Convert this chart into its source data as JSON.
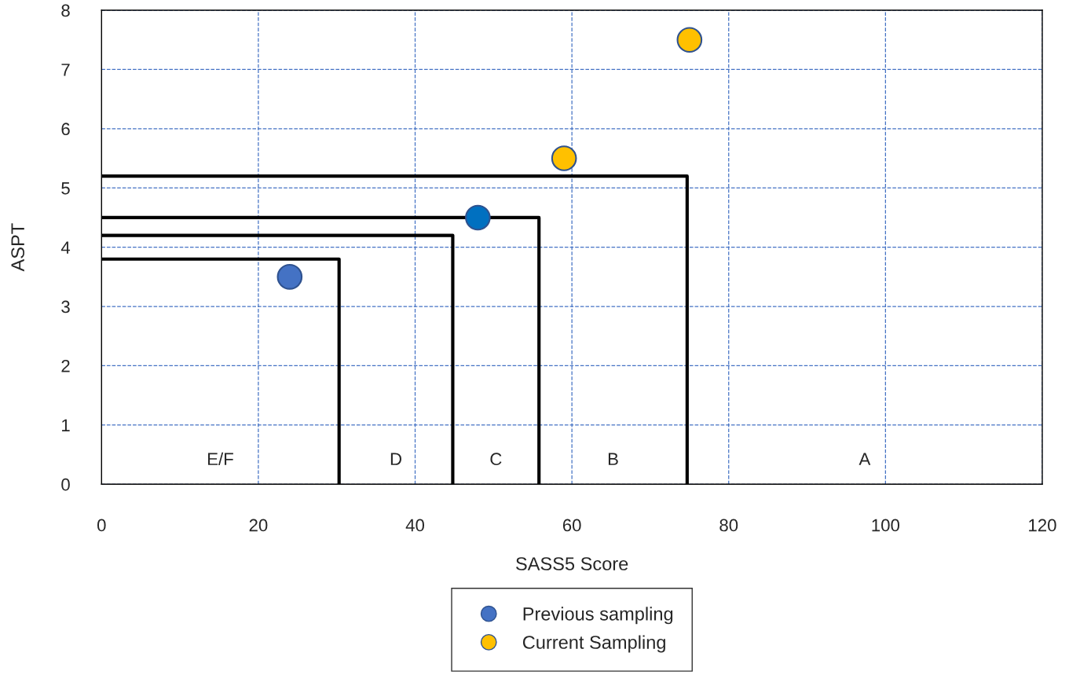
{
  "chart_data": {
    "type": "scatter",
    "xlabel": "SASS5 Score",
    "ylabel": "ASPT",
    "xlim": [
      0,
      120
    ],
    "xticks": [
      0,
      20,
      40,
      60,
      80,
      100,
      120
    ],
    "ylim": [
      0,
      8
    ],
    "yticks": [
      0,
      1,
      2,
      3,
      4,
      5,
      6,
      7,
      8
    ],
    "grid": true,
    "legend": "bottom",
    "marker": "circle",
    "series": [
      {
        "name": "Previous sampling",
        "color": "#4472c4",
        "colors": [
          "#4472c4",
          "#0070c0"
        ],
        "x": [
          24,
          48
        ],
        "values": [
          3.5,
          4.5
        ]
      },
      {
        "name": "Current Sampling",
        "color": "#ffc000",
        "x": [
          59,
          75
        ],
        "values": [
          5.5,
          7.5
        ]
      },
      {
        "type": "line",
        "color": "#000000",
        "marker": "none",
        "line_style": "solid",
        "x": [
          0,
          30.3,
          30.3
        ],
        "values": [
          3.8,
          3.8,
          0
        ]
      },
      {
        "type": "line",
        "color": "#000000",
        "marker": "none",
        "line_style": "solid",
        "x": [
          0,
          44.8,
          44.8
        ],
        "values": [
          4.2,
          4.2,
          0
        ]
      },
      {
        "type": "line",
        "color": "#000000",
        "marker": "none",
        "line_style": "solid",
        "x": [
          0,
          55.8,
          55.8
        ],
        "values": [
          4.5,
          4.5,
          0
        ]
      },
      {
        "type": "line",
        "color": "#000000",
        "marker": "none",
        "line_style": "solid",
        "x": [
          0,
          74.7,
          74.7
        ],
        "values": [
          5.2,
          5.2,
          0
        ]
      }
    ],
    "annotations": [
      "E/F",
      "D",
      "C",
      "B",
      "A"
    ]
  }
}
